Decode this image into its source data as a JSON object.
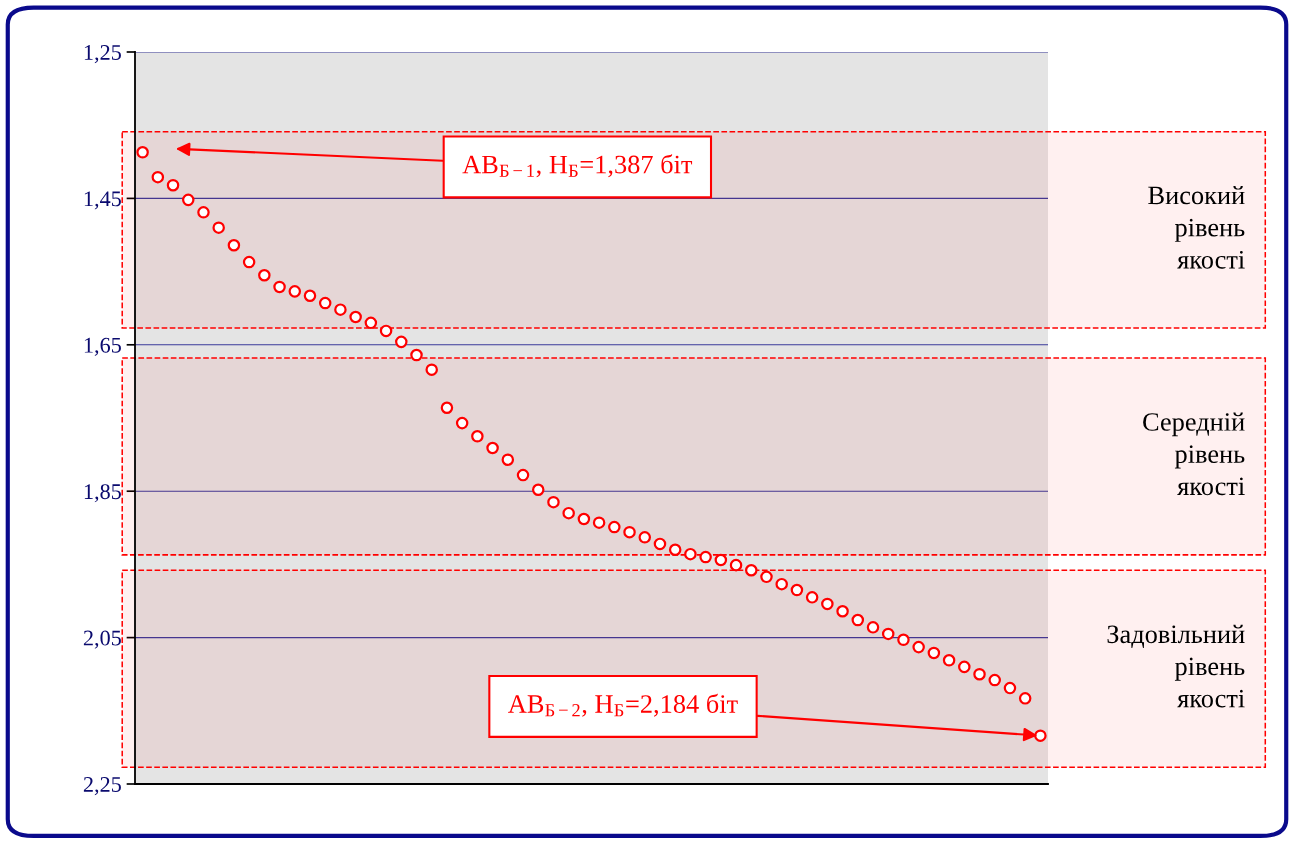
{
  "chart_data": {
    "type": "scatter",
    "categories": [
      null,
      null,
      null,
      null,
      null,
      null,
      null,
      null,
      null,
      null,
      null,
      null,
      null,
      null,
      null,
      null,
      null,
      null,
      null,
      null,
      null,
      null,
      null,
      null,
      null,
      null,
      null,
      null,
      null,
      null,
      null,
      null,
      null,
      null,
      null,
      null,
      null,
      null,
      null,
      null,
      null,
      null,
      null,
      null,
      null,
      null,
      null,
      null,
      null,
      null,
      null,
      null,
      null,
      null,
      null,
      null,
      null,
      null,
      null,
      null
    ],
    "series": [
      {
        "color": "#ff0000",
        "values": [
          1.387,
          1.421,
          1.432,
          1.452,
          1.469,
          1.49,
          1.514,
          1.537,
          1.555,
          1.571,
          1.577,
          1.583,
          1.593,
          1.602,
          1.612,
          1.62,
          1.631,
          1.646,
          1.664,
          1.684,
          1.736,
          1.757,
          1.775,
          1.791,
          1.807,
          1.828,
          1.848,
          1.865,
          1.88,
          1.888,
          1.893,
          1.899,
          1.906,
          1.913,
          1.922,
          1.93,
          1.936,
          1.94,
          1.944,
          1.951,
          1.958,
          1.967,
          1.977,
          1.985,
          1.995,
          2.004,
          2.014,
          2.026,
          2.036,
          2.045,
          2.053,
          2.063,
          2.071,
          2.081,
          2.09,
          2.1,
          2.108,
          2.119,
          2.133,
          2.184
        ]
      }
    ],
    "ylim": [
      2.25,
      1.25
    ],
    "yticks": [
      {
        "value": 1.25,
        "label": "1,25"
      },
      {
        "value": 1.45,
        "label": "1,45"
      },
      {
        "value": 1.65,
        "label": "1,65"
      },
      {
        "value": 1.85,
        "label": "1,85"
      },
      {
        "value": 2.05,
        "label": "2,05"
      },
      {
        "value": 2.25,
        "label": "2,25"
      }
    ],
    "grid": "y",
    "marker": "circle",
    "tick_labels": "y",
    "bands": [
      {
        "axis": "y",
        "from": 1.359,
        "to": 1.627,
        "label": "Високий\nрівень\nякості",
        "color": "#ff0000"
      },
      {
        "axis": "y",
        "from": 1.668,
        "to": 1.937,
        "label": "Середній\nрівень\nякості",
        "color": "#ff0000"
      },
      {
        "axis": "y",
        "from": 1.958,
        "to": 2.227,
        "label": "Задовільний\nрівень\nякості",
        "color": "#ff0000"
      }
    ],
    "annotations": [
      "АВ$_{Б−1}$, Н$_{Б}$=1,387 біт",
      "АВ$_{Б−2}$, Н$_{Б}$=2,184 біт"
    ]
  }
}
